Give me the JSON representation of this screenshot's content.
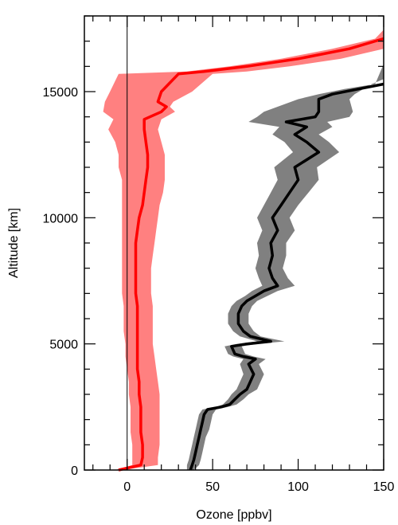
{
  "chart_data": {
    "type": "area",
    "xlabel": "Ozone [ppbv]",
    "ylabel": "Altitude [km]",
    "xlim": [
      -25,
      150
    ],
    "ylim": [
      0,
      18000
    ],
    "x_ticks": [
      0,
      50,
      100,
      150
    ],
    "y_ticks": [
      0,
      5000,
      10000,
      15000
    ],
    "zero_line_x": 0,
    "grid": false,
    "series": [
      {
        "color": "#ff0000",
        "band_color": "#ff8080",
        "points": [
          [
            -5,
            0
          ],
          [
            8,
            200
          ],
          [
            9,
            500
          ],
          [
            9,
            1000
          ],
          [
            8,
            1500
          ],
          [
            8,
            2000
          ],
          [
            8,
            2500
          ],
          [
            7,
            3000
          ],
          [
            7,
            3500
          ],
          [
            6,
            4000
          ],
          [
            6,
            4500
          ],
          [
            6,
            5000
          ],
          [
            6,
            5500
          ],
          [
            6,
            6000
          ],
          [
            6,
            6500
          ],
          [
            5,
            7000
          ],
          [
            5,
            7500
          ],
          [
            5,
            8000
          ],
          [
            5,
            8500
          ],
          [
            5,
            9000
          ],
          [
            6,
            9500
          ],
          [
            7,
            10000
          ],
          [
            9,
            10500
          ],
          [
            10,
            11000
          ],
          [
            11,
            11500
          ],
          [
            12,
            12000
          ],
          [
            12,
            12500
          ],
          [
            11,
            13000
          ],
          [
            10,
            13500
          ],
          [
            10,
            13900
          ],
          [
            20,
            14200
          ],
          [
            23,
            14400
          ],
          [
            18,
            14600
          ],
          [
            20,
            15000
          ],
          [
            30,
            15700
          ],
          [
            45,
            15800
          ],
          [
            70,
            16000
          ],
          [
            100,
            16300
          ],
          [
            130,
            16700
          ],
          [
            150,
            17100
          ]
        ],
        "lower": [
          [
            -7,
            0
          ],
          [
            3,
            200
          ],
          [
            3,
            500
          ],
          [
            3,
            1000
          ],
          [
            2,
            1500
          ],
          [
            2,
            2000
          ],
          [
            2,
            2500
          ],
          [
            1,
            3000
          ],
          [
            1,
            3500
          ],
          [
            0,
            4000
          ],
          [
            -1,
            4500
          ],
          [
            -1,
            5000
          ],
          [
            -2,
            5500
          ],
          [
            -2,
            6000
          ],
          [
            -2,
            6500
          ],
          [
            -3,
            7000
          ],
          [
            -3,
            7500
          ],
          [
            -3,
            8000
          ],
          [
            -3,
            8500
          ],
          [
            -3,
            9000
          ],
          [
            -3,
            9500
          ],
          [
            -3,
            10000
          ],
          [
            -3,
            10500
          ],
          [
            -3,
            11000
          ],
          [
            -3,
            11500
          ],
          [
            -5,
            12000
          ],
          [
            -5,
            12500
          ],
          [
            -7,
            13000
          ],
          [
            -11,
            13500
          ],
          [
            -8,
            13900
          ],
          [
            -14,
            14200
          ],
          [
            -13,
            14600
          ],
          [
            -10,
            15000
          ],
          [
            -5,
            15700
          ],
          [
            35,
            15800
          ],
          [
            60,
            16000
          ],
          [
            90,
            16300
          ],
          [
            120,
            16700
          ],
          [
            145,
            17100
          ]
        ],
        "upper": [
          [
            -3,
            0
          ],
          [
            18,
            200
          ],
          [
            18,
            500
          ],
          [
            19,
            1000
          ],
          [
            19,
            1500
          ],
          [
            19,
            2000
          ],
          [
            19,
            2500
          ],
          [
            19,
            3000
          ],
          [
            18,
            3500
          ],
          [
            17,
            4000
          ],
          [
            16,
            4500
          ],
          [
            15,
            5000
          ],
          [
            15,
            5500
          ],
          [
            15,
            6000
          ],
          [
            15,
            6500
          ],
          [
            14,
            7000
          ],
          [
            14,
            7500
          ],
          [
            14,
            8000
          ],
          [
            15,
            8500
          ],
          [
            16,
            9000
          ],
          [
            17,
            9500
          ],
          [
            18,
            10000
          ],
          [
            19,
            10500
          ],
          [
            21,
            11000
          ],
          [
            22,
            11500
          ],
          [
            22,
            12000
          ],
          [
            22,
            12500
          ],
          [
            20,
            13000
          ],
          [
            18,
            13500
          ],
          [
            20,
            13900
          ],
          [
            28,
            14200
          ],
          [
            25,
            14400
          ],
          [
            27,
            14600
          ],
          [
            38,
            15000
          ],
          [
            50,
            15700
          ],
          [
            70,
            15800
          ],
          [
            95,
            16000
          ],
          [
            125,
            16300
          ],
          [
            150,
            16700
          ],
          [
            150,
            17450
          ]
        ]
      },
      {
        "color": "#000000",
        "band_color": "#808080",
        "points": [
          [
            37,
            0
          ],
          [
            38,
            200
          ],
          [
            39,
            400
          ],
          [
            40,
            700
          ],
          [
            41,
            1000
          ],
          [
            42,
            1300
          ],
          [
            43,
            1600
          ],
          [
            44,
            1900
          ],
          [
            45,
            2200
          ],
          [
            47,
            2400
          ],
          [
            55,
            2500
          ],
          [
            60,
            2600
          ],
          [
            63,
            2800
          ],
          [
            66,
            3000
          ],
          [
            70,
            3200
          ],
          [
            72,
            3500
          ],
          [
            74,
            3800
          ],
          [
            71,
            4200
          ],
          [
            75,
            4400
          ],
          [
            68,
            4500
          ],
          [
            63,
            4600
          ],
          [
            61,
            4900
          ],
          [
            70,
            5000
          ],
          [
            84,
            5100
          ],
          [
            72,
            5300
          ],
          [
            68,
            5500
          ],
          [
            65,
            5800
          ],
          [
            65,
            6200
          ],
          [
            67,
            6500
          ],
          [
            70,
            6700
          ],
          [
            75,
            6900
          ],
          [
            80,
            7100
          ],
          [
            88,
            7300
          ],
          [
            85,
            7600
          ],
          [
            83,
            8000
          ],
          [
            85,
            8500
          ],
          [
            84,
            9000
          ],
          [
            88,
            9500
          ],
          [
            85,
            10000
          ],
          [
            90,
            10500
          ],
          [
            95,
            11000
          ],
          [
            100,
            11500
          ],
          [
            98,
            12000
          ],
          [
            112,
            12600
          ],
          [
            105,
            13000
          ],
          [
            98,
            13300
          ],
          [
            105,
            13600
          ],
          [
            93,
            13800
          ],
          [
            110,
            14000
          ],
          [
            112,
            14200
          ],
          [
            112,
            14700
          ],
          [
            120,
            14900
          ],
          [
            135,
            15100
          ],
          [
            150,
            15300
          ]
        ],
        "lower": [
          [
            35,
            0
          ],
          [
            35,
            200
          ],
          [
            36,
            400
          ],
          [
            37,
            700
          ],
          [
            38,
            1000
          ],
          [
            39,
            1300
          ],
          [
            40,
            1600
          ],
          [
            41,
            1900
          ],
          [
            42,
            2200
          ],
          [
            44,
            2400
          ],
          [
            52,
            2500
          ],
          [
            56,
            2600
          ],
          [
            59,
            2800
          ],
          [
            61,
            3000
          ],
          [
            64,
            3200
          ],
          [
            66,
            3500
          ],
          [
            68,
            3800
          ],
          [
            66,
            4200
          ],
          [
            68,
            4400
          ],
          [
            62,
            4500
          ],
          [
            59,
            4600
          ],
          [
            57,
            4900
          ],
          [
            64,
            5000
          ],
          [
            76,
            5100
          ],
          [
            66,
            5300
          ],
          [
            62,
            5500
          ],
          [
            59,
            5800
          ],
          [
            59,
            6200
          ],
          [
            61,
            6500
          ],
          [
            64,
            6700
          ],
          [
            69,
            6900
          ],
          [
            73,
            7100
          ],
          [
            79,
            7300
          ],
          [
            77,
            7600
          ],
          [
            75,
            8000
          ],
          [
            77,
            8500
          ],
          [
            76,
            9000
          ],
          [
            79,
            9500
          ],
          [
            76,
            10000
          ],
          [
            80,
            10500
          ],
          [
            84,
            11000
          ],
          [
            88,
            11500
          ],
          [
            86,
            12000
          ],
          [
            97,
            12600
          ],
          [
            92,
            13000
          ],
          [
            85,
            13300
          ],
          [
            89,
            13600
          ],
          [
            71,
            13800
          ],
          [
            76,
            14000
          ],
          [
            80,
            14200
          ],
          [
            100,
            14700
          ],
          [
            112,
            14900
          ],
          [
            127,
            15100
          ],
          [
            145,
            15300
          ]
        ],
        "upper": [
          [
            39,
            0
          ],
          [
            42,
            200
          ],
          [
            43,
            400
          ],
          [
            44,
            700
          ],
          [
            45,
            1000
          ],
          [
            46,
            1300
          ],
          [
            48,
            1600
          ],
          [
            49,
            1900
          ],
          [
            50,
            2200
          ],
          [
            52,
            2400
          ],
          [
            59,
            2500
          ],
          [
            64,
            2600
          ],
          [
            68,
            2800
          ],
          [
            71,
            3000
          ],
          [
            76,
            3200
          ],
          [
            78,
            3500
          ],
          [
            80,
            3800
          ],
          [
            77,
            4200
          ],
          [
            81,
            4400
          ],
          [
            74,
            4500
          ],
          [
            69,
            4600
          ],
          [
            67,
            4900
          ],
          [
            76,
            5000
          ],
          [
            92,
            5100
          ],
          [
            78,
            5300
          ],
          [
            74,
            5500
          ],
          [
            71,
            5800
          ],
          [
            71,
            6200
          ],
          [
            73,
            6500
          ],
          [
            76,
            6700
          ],
          [
            82,
            6900
          ],
          [
            88,
            7100
          ],
          [
            98,
            7300
          ],
          [
            94,
            7600
          ],
          [
            91,
            8000
          ],
          [
            93,
            8500
          ],
          [
            93,
            9000
          ],
          [
            98,
            9500
          ],
          [
            95,
            10000
          ],
          [
            100,
            10500
          ],
          [
            106,
            11000
          ],
          [
            112,
            11500
          ],
          [
            111,
            12000
          ],
          [
            124,
            12600
          ],
          [
            118,
            13000
          ],
          [
            112,
            13300
          ],
          [
            120,
            13600
          ],
          [
            117,
            13800
          ],
          [
            130,
            14000
          ],
          [
            132,
            14200
          ],
          [
            130,
            14700
          ],
          [
            133,
            14900
          ],
          [
            143,
            15300
          ],
          [
            150,
            15500
          ],
          [
            150,
            16100
          ]
        ]
      }
    ]
  }
}
